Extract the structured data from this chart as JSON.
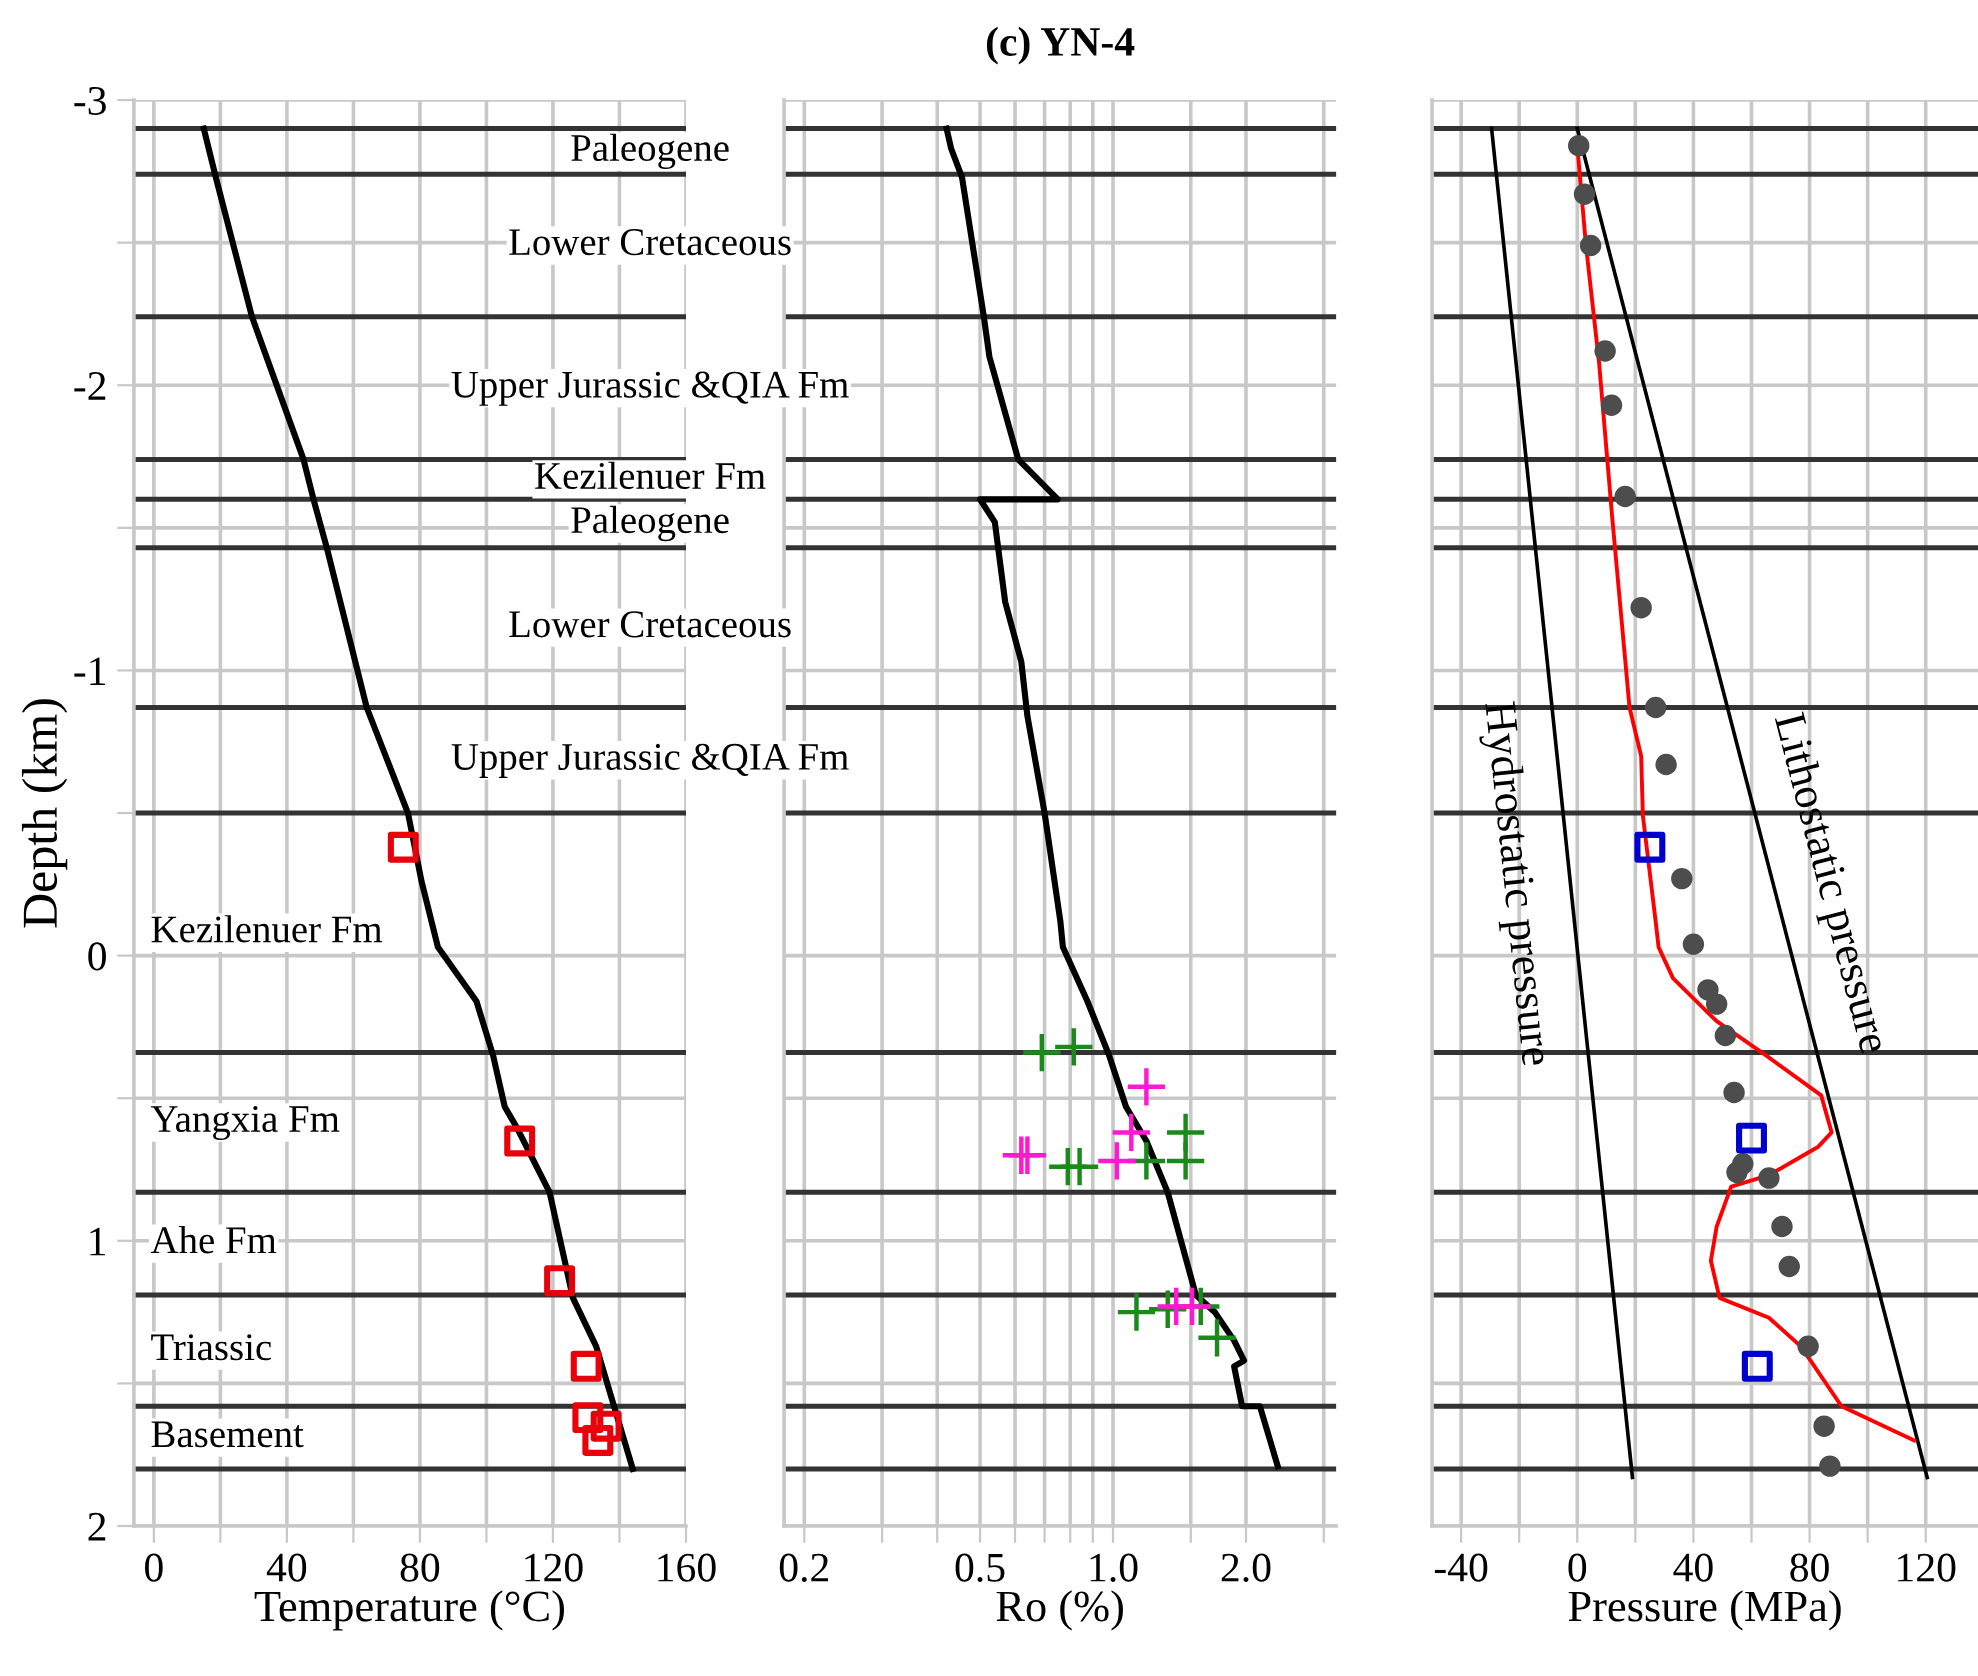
{
  "chart_data": [
    {
      "type": "line",
      "xlabel": "Temperature (°C)",
      "ylabel": "Depth (km)",
      "xlim": [
        -6,
        160
      ],
      "xticks": [
        0,
        {
          "value": 20,
          "label": null
        },
        40,
        {
          "value": 60,
          "label": null
        },
        80,
        {
          "value": 100,
          "label": null
        },
        120,
        {
          "value": 140,
          "label": null
        },
        160
      ],
      "ylim": [
        2,
        -3
      ],
      "yticks": [
        -3,
        {
          "value": -2.5,
          "label": null
        },
        -2,
        {
          "value": -1.5,
          "label": null
        },
        -1,
        {
          "value": -0.5,
          "label": null
        },
        0,
        {
          "value": 0.5,
          "label": null
        },
        1,
        {
          "value": 1.5,
          "label": null
        },
        2
      ],
      "grid": true,
      "series": [
        {
          "color": "#000000",
          "x": [
            15,
            18.6,
            29.5,
            45,
            48,
            52,
            64,
            76.4,
            80.5,
            85.4,
            97,
            102,
            105.5,
            109,
            119,
            126,
            133,
            144
          ],
          "values": [
            -2.9,
            -2.73,
            -2.24,
            -1.74,
            -1.6,
            -1.43,
            -0.87,
            -0.5,
            -0.26,
            -0.03,
            0.16,
            0.35,
            0.53,
            0.6,
            0.83,
            1.2,
            1.37,
            1.8
          ]
        },
        {
          "type": "scatter",
          "marker": "square",
          "color": "#e8000b",
          "x": [
            75,
            110,
            122,
            130,
            130.5,
            136,
            133.5
          ],
          "values": [
            -0.38,
            0.65,
            1.14,
            1.44,
            1.62,
            1.65,
            1.7
          ]
        }
      ],
      "ref_lines": [
        {
          "axis": "y",
          "value": -2.9,
          "color": "#333333"
        },
        {
          "axis": "y",
          "value": -2.74,
          "color": "#333333"
        },
        {
          "axis": "y",
          "value": -2.24,
          "color": "#333333"
        },
        {
          "axis": "y",
          "value": -1.74,
          "color": "#333333"
        },
        {
          "axis": "y",
          "value": -1.6,
          "color": "#333333"
        },
        {
          "axis": "y",
          "value": -1.43,
          "color": "#333333"
        },
        {
          "axis": "y",
          "value": -0.87,
          "color": "#333333"
        },
        {
          "axis": "y",
          "value": -0.5,
          "color": "#333333"
        },
        {
          "axis": "y",
          "value": 0.34,
          "color": "#333333"
        },
        {
          "axis": "y",
          "value": 0.83,
          "color": "#333333"
        },
        {
          "axis": "y",
          "value": 1.19,
          "color": "#333333"
        },
        {
          "axis": "y",
          "value": 1.58,
          "color": "#333333"
        },
        {
          "axis": "y",
          "value": 1.8,
          "color": "#333333"
        }
      ],
      "annotations": [
        "Paleogene",
        "Lower Cretaceous",
        "Upper Jurassic &QIA Fm",
        "Kezilenuer Fm",
        "Paleogene",
        "Lower Cretaceous",
        "Upper Jurassic &QIA Fm",
        "Kezilenuer Fm",
        "Yangxia Fm",
        "Ahe Fm",
        "Triassic",
        "Basement"
      ]
    },
    {
      "type": "line",
      "title": "(c) YN-4",
      "xlabel": "Ro (%)",
      "log": "x",
      "xlim": [
        0.18,
        3.2
      ],
      "xticks": [
        {
          "value": 0.2,
          "label": "0.2"
        },
        {
          "value": 0.3,
          "label": null
        },
        {
          "value": 0.4,
          "label": null
        },
        {
          "value": 0.5,
          "label": "0.5"
        },
        {
          "value": 0.6,
          "label": null
        },
        {
          "value": 0.7,
          "label": null
        },
        {
          "value": 0.8,
          "label": null
        },
        {
          "value": 0.9,
          "label": null
        },
        {
          "value": 1.0,
          "label": "1.0"
        },
        {
          "value": 1.5,
          "label": null
        },
        {
          "value": 2.0,
          "label": "2.0"
        },
        {
          "value": 3.0,
          "label": null
        }
      ],
      "ylim": [
        2,
        -3
      ],
      "yticks": [
        -3,
        {
          "value": -2.5,
          "label": null
        },
        -2,
        {
          "value": -1.5,
          "label": null
        },
        -1,
        {
          "value": -0.5,
          "label": null
        },
        0,
        {
          "value": 0.5,
          "label": null
        },
        1,
        {
          "value": 1.5,
          "label": null
        },
        2
      ],
      "grid": true,
      "tick_labels": "x",
      "series": [
        {
          "color": "#000000",
          "x": [
            0.42,
            0.43,
            0.455,
            0.51,
            0.525,
            0.61,
            0.75,
            0.5,
            0.54,
            0.57,
            0.62,
            0.64,
            0.7,
            0.76,
            0.77,
            0.875,
            0.98,
            1.07,
            1.19,
            1.33,
            1.54,
            1.7,
            1.88,
            1.98,
            1.88,
            1.96,
            2.15,
            2.36
          ],
          "values": [
            -2.9,
            -2.83,
            -2.73,
            -2.24,
            -2.1,
            -1.74,
            -1.6,
            -1.6,
            -1.52,
            -1.24,
            -1.03,
            -0.84,
            -0.5,
            -0.12,
            -0.03,
            0.16,
            0.35,
            0.53,
            0.65,
            0.83,
            1.19,
            1.25,
            1.35,
            1.42,
            1.44,
            1.58,
            1.58,
            1.79
          ]
        },
        {
          "type": "scatter",
          "marker": "cross",
          "color": "#1a8a1a",
          "x": [
            0.69,
            0.815,
            0.79,
            0.84,
            1.19,
            1.46,
            1.46,
            1.13,
            1.33,
            1.58,
            1.72
          ],
          "values": [
            0.34,
            0.32,
            0.74,
            0.74,
            0.72,
            0.62,
            0.72,
            1.25,
            1.24,
            1.23,
            1.34
          ]
        },
        {
          "type": "scatter",
          "marker": "cross",
          "color": "#ff19d0",
          "x": [
            1.19,
            1.1,
            0.62,
            0.64,
            1.02,
            1.39,
            1.51
          ],
          "values": [
            0.46,
            0.62,
            0.7,
            0.7,
            0.72,
            1.23,
            1.23
          ]
        }
      ],
      "ref_lines": [
        {
          "axis": "y",
          "value": -2.9,
          "color": "#333333"
        },
        {
          "axis": "y",
          "value": -2.74,
          "color": "#333333"
        },
        {
          "axis": "y",
          "value": -2.24,
          "color": "#333333"
        },
        {
          "axis": "y",
          "value": -1.74,
          "color": "#333333"
        },
        {
          "axis": "y",
          "value": -1.6,
          "color": "#333333"
        },
        {
          "axis": "y",
          "value": -1.43,
          "color": "#333333"
        },
        {
          "axis": "y",
          "value": -0.87,
          "color": "#333333"
        },
        {
          "axis": "y",
          "value": -0.5,
          "color": "#333333"
        },
        {
          "axis": "y",
          "value": 0.34,
          "color": "#333333"
        },
        {
          "axis": "y",
          "value": 0.83,
          "color": "#333333"
        },
        {
          "axis": "y",
          "value": 1.19,
          "color": "#333333"
        },
        {
          "axis": "y",
          "value": 1.58,
          "color": "#333333"
        },
        {
          "axis": "y",
          "value": 1.8,
          "color": "#333333"
        }
      ]
    },
    {
      "type": "line",
      "xlabel": "Pressure (MPa)",
      "xlim": [
        -50,
        138
      ],
      "xticks": [
        -40,
        {
          "value": -20,
          "label": null
        },
        0,
        {
          "value": 20,
          "label": null
        },
        40,
        {
          "value": 60,
          "label": null
        },
        80,
        {
          "value": 100,
          "label": null
        },
        120
      ],
      "ylim": [
        2,
        -3
      ],
      "yticks": [
        -3,
        {
          "value": -2.5,
          "label": null
        },
        -2,
        {
          "value": -1.5,
          "label": null
        },
        -1,
        {
          "value": -0.5,
          "label": null
        },
        0,
        {
          "value": 0.5,
          "label": null
        },
        1,
        {
          "value": 1.5,
          "label": null
        },
        2
      ],
      "grid": true,
      "tick_labels": "x",
      "series": [
        {
          "name": "Hydrostatic pressure",
          "color": "#000000",
          "x": [
            -29.5,
            19
          ],
          "values": [
            -2.9,
            1.83
          ]
        },
        {
          "name": "Lithostatic pressure",
          "color": "#000000",
          "x": [
            0,
            120.5
          ],
          "values": [
            -2.9,
            1.83
          ]
        },
        {
          "color": "#ff0000",
          "x": [
            0,
            3,
            7.5,
            12,
            18,
            22,
            22.6,
            27,
            28,
            33,
            48,
            65,
            84,
            87.6,
            83,
            66,
            53,
            48,
            46,
            49,
            66,
            77,
            91,
            116
          ],
          "values": [
            -2.84,
            -2.49,
            -2.08,
            -1.54,
            -0.87,
            -0.7,
            -0.49,
            -0.12,
            -0.03,
            0.08,
            0.23,
            0.35,
            0.49,
            0.62,
            0.67,
            0.77,
            0.81,
            0.95,
            1.07,
            1.2,
            1.27,
            1.37,
            1.58,
            1.7
          ]
        },
        {
          "type": "scatter",
          "marker": "circle",
          "color": "#4d4d4d",
          "x": [
            0.5,
            2.5,
            4.6,
            9.6,
            11.8,
            16.5,
            22,
            27,
            30.6,
            36,
            40,
            45,
            48,
            51,
            54,
            57,
            55,
            66,
            70.5,
            73,
            79.5,
            85,
            87
          ],
          "values": [
            -2.84,
            -2.67,
            -2.49,
            -2.12,
            -1.93,
            -1.61,
            -1.22,
            -0.87,
            -0.67,
            -0.27,
            -0.04,
            0.12,
            0.17,
            0.28,
            0.48,
            0.73,
            0.76,
            0.78,
            0.95,
            1.09,
            1.37,
            1.65,
            1.79
          ]
        },
        {
          "type": "scatter",
          "marker": "square",
          "color": "#0000cc",
          "x": [
            25,
            60,
            62
          ],
          "values": [
            -0.38,
            0.64,
            1.44
          ]
        }
      ],
      "ref_lines": [
        {
          "axis": "y",
          "value": -2.9,
          "color": "#333333"
        },
        {
          "axis": "y",
          "value": -2.74,
          "color": "#333333"
        },
        {
          "axis": "y",
          "value": -2.24,
          "color": "#333333"
        },
        {
          "axis": "y",
          "value": -1.74,
          "color": "#333333"
        },
        {
          "axis": "y",
          "value": -1.6,
          "color": "#333333"
        },
        {
          "axis": "y",
          "value": -1.43,
          "color": "#333333"
        },
        {
          "axis": "y",
          "value": -0.87,
          "color": "#333333"
        },
        {
          "axis": "y",
          "value": -0.5,
          "color": "#333333"
        },
        {
          "axis": "y",
          "value": 0.34,
          "color": "#333333"
        },
        {
          "axis": "y",
          "value": 0.83,
          "color": "#333333"
        },
        {
          "axis": "y",
          "value": 1.19,
          "color": "#333333"
        },
        {
          "axis": "y",
          "value": 1.58,
          "color": "#333333"
        },
        {
          "axis": "y",
          "value": 1.8,
          "color": "#333333"
        }
      ]
    }
  ]
}
